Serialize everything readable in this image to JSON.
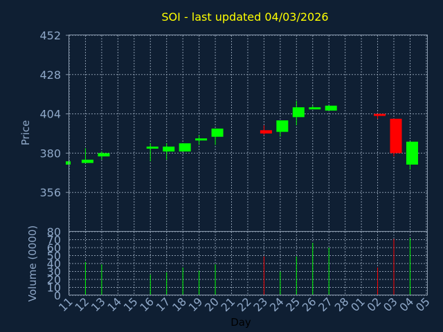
{
  "colors": {
    "background": "#0f1f33",
    "up": "#00ff00",
    "down": "#ff0000",
    "title": "#ffff00",
    "axis_text": "#8fa8c8",
    "grid": "#8a9aad"
  },
  "chart_data": {
    "type": "candlestick",
    "title": "SOI - last updated 04/03/2026",
    "ylabel": "Price",
    "xlabel": "Day",
    "volume_label": "Volume (0000)",
    "ylim": [
      332,
      452
    ],
    "yticks": [
      "452",
      "428",
      "404",
      "380",
      "356"
    ],
    "volume_ylim": [
      0,
      80
    ],
    "volume_yticks": [
      "80",
      "70",
      "60",
      "50",
      "40",
      "30",
      "20",
      "10",
      "0"
    ],
    "categories": [
      "11",
      "12",
      "13",
      "14",
      "15",
      "16",
      "17",
      "18",
      "19",
      "20",
      "21",
      "22",
      "23",
      "24",
      "25",
      "26",
      "27",
      "28",
      "01",
      "02",
      "03",
      "04",
      "05"
    ],
    "candles": [
      {
        "day": "11",
        "open": 373,
        "close": 375,
        "high": 375,
        "low": 373,
        "volume": 0
      },
      {
        "day": "12",
        "open": 374,
        "close": 376,
        "high": 383,
        "low": 374,
        "volume": 42
      },
      {
        "day": "13",
        "open": 378,
        "close": 380,
        "high": 381,
        "low": 376,
        "volume": 39
      },
      {
        "day": "16",
        "open": 383,
        "close": 384,
        "high": 386,
        "low": 375,
        "volume": 26
      },
      {
        "day": "17",
        "open": 381,
        "close": 384,
        "high": 386,
        "low": 376,
        "volume": 29
      },
      {
        "day": "18",
        "open": 381,
        "close": 386,
        "high": 386,
        "low": 381,
        "volume": 35
      },
      {
        "day": "19",
        "open": 388,
        "close": 389,
        "high": 391,
        "low": 385,
        "volume": 31
      },
      {
        "day": "20",
        "open": 390,
        "close": 395,
        "high": 395,
        "low": 385,
        "volume": 39
      },
      {
        "day": "23",
        "open": 394,
        "close": 392,
        "high": 397,
        "low": 391,
        "volume": 49
      },
      {
        "day": "24",
        "open": 393,
        "close": 400,
        "high": 400,
        "low": 390,
        "volume": 30
      },
      {
        "day": "25",
        "open": 402,
        "close": 408,
        "high": 412,
        "low": 397,
        "volume": 49
      },
      {
        "day": "26",
        "open": 407,
        "close": 408,
        "high": 409,
        "low": 407,
        "volume": 66
      },
      {
        "day": "27",
        "open": 406,
        "close": 409,
        "high": 409,
        "low": 406,
        "volume": 60
      },
      {
        "day": "02",
        "open": 404,
        "close": 403,
        "high": 404,
        "low": 401,
        "volume": 35
      },
      {
        "day": "03",
        "open": 401,
        "close": 380,
        "high": 401,
        "low": 378,
        "volume": 71
      },
      {
        "day": "04",
        "open": 373,
        "close": 387,
        "high": 387,
        "low": 370,
        "volume": 72
      }
    ]
  }
}
